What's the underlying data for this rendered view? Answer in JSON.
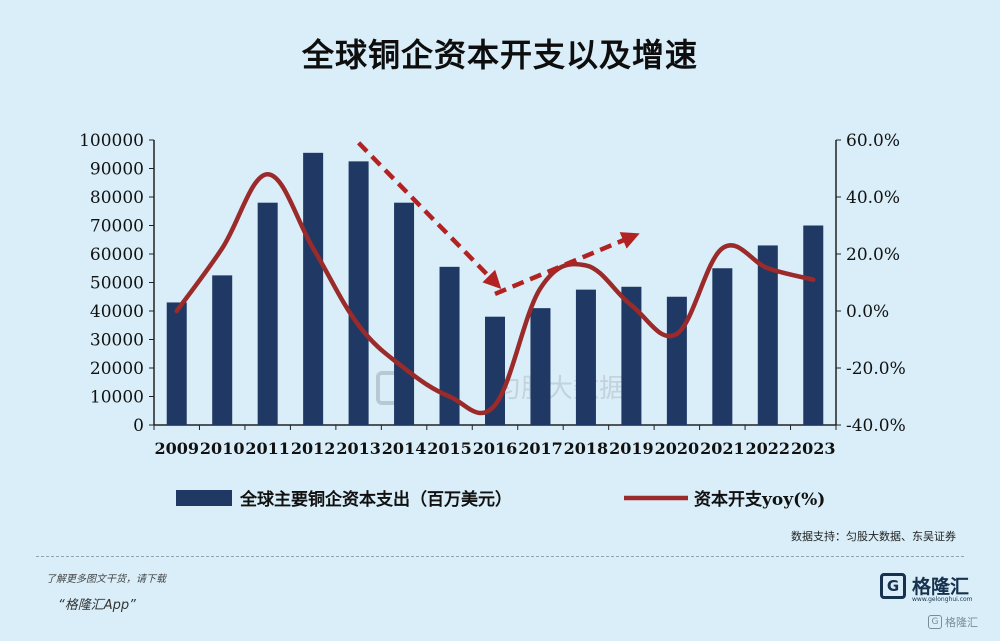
{
  "title": "全球铜企资本开支以及增速",
  "chart_data": {
    "type": "bar",
    "categories": [
      "2009",
      "2010",
      "2011",
      "2012",
      "2013",
      "2014",
      "2015",
      "2016",
      "2017",
      "2018",
      "2019",
      "2020",
      "2021",
      "2022",
      "2023"
    ],
    "series": [
      {
        "name": "全球主要铜企资本支出（百万美元）",
        "type": "bar",
        "axis": "left",
        "color": "#1f3864",
        "values": [
          43000,
          52500,
          78000,
          95500,
          92500,
          78000,
          55500,
          38000,
          41000,
          47500,
          48500,
          45000,
          55000,
          63000,
          70000
        ]
      },
      {
        "name": "资本开支yoy(%)",
        "type": "line",
        "axis": "right",
        "color": "#9b2a2a",
        "values": [
          0.0,
          22.0,
          48.0,
          22.0,
          -5.0,
          -20.0,
          -30.0,
          -33.0,
          8.0,
          16.0,
          2.0,
          -8.0,
          22.0,
          15.0,
          11.0
        ]
      }
    ],
    "y_left": {
      "range": [
        0,
        100000
      ],
      "ticks": [
        "100000",
        "90000",
        "80000",
        "70000",
        "60000",
        "50000",
        "40000",
        "30000",
        "20000",
        "10000",
        "0"
      ]
    },
    "y_right": {
      "range": [
        -40,
        60
      ],
      "ticks": [
        "60.0%",
        "40.0%",
        "20.0%",
        "0.0%",
        "-20.0%",
        "-40.0%"
      ]
    },
    "grid": false,
    "legend_position": "bottom",
    "legend": [
      {
        "label": "全球主要铜企资本支出（百万美元）",
        "kind": "bar",
        "color": "#1f3864"
      },
      {
        "label": "资本开支yoy(%)",
        "kind": "line",
        "color": "#9b2a2a"
      }
    ],
    "annotations": [
      {
        "kind": "dashed-arrow",
        "color": "#b22222",
        "from": [
          "2013",
          59
        ],
        "to": [
          "2016",
          10
        ]
      },
      {
        "kind": "dashed-arrow",
        "color": "#b22222",
        "from": [
          "2016",
          6
        ],
        "to": [
          "2019",
          26
        ]
      }
    ],
    "watermark": "匀股大数据"
  },
  "source": "数据支持：匀股大数据、东吴证券",
  "footer": {
    "note": "了解更多图文干货，请下载",
    "app": "“格隆汇App”",
    "brand": "格隆汇",
    "brand_url": "www.gelonghui.com",
    "corner_mark": "格隆汇"
  }
}
